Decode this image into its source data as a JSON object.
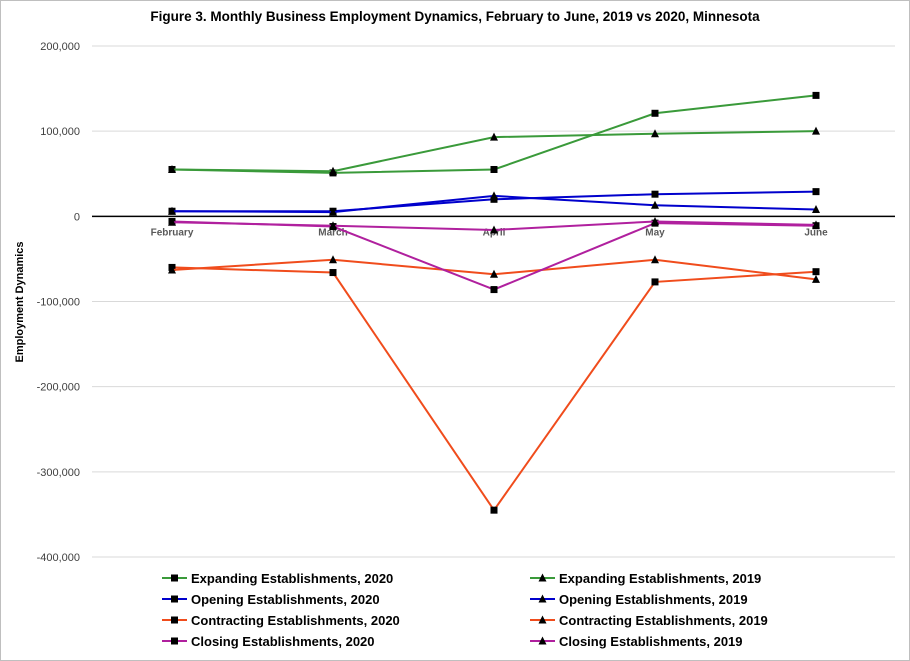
{
  "chart_data": {
    "type": "line",
    "title": "Figure 3. Monthly Business Employment Dynamics, February to June, 2019 vs 2020, Minnesota",
    "xlabel": "",
    "ylabel": "Employment Dynamics",
    "categories": [
      "February",
      "March",
      "April",
      "May",
      "June"
    ],
    "ylim": [
      -400000,
      200000
    ],
    "yticks": [
      200000,
      100000,
      0,
      -100000,
      -200000,
      -300000,
      -400000
    ],
    "ytick_labels": [
      "200,000",
      "100,000",
      "0",
      "-100,000",
      "-200,000",
      "-300,000",
      "-400,000"
    ],
    "grid": true,
    "legend_position": "bottom",
    "series": [
      {
        "name": "Expanding Establishments, 2020",
        "color": "#3a9a3a",
        "marker": "square",
        "values": [
          55000,
          51000,
          55000,
          121000,
          142000
        ]
      },
      {
        "name": "Expanding Establishments, 2019",
        "color": "#3a9a3a",
        "marker": "triangle",
        "values": [
          55000,
          53000,
          93000,
          97000,
          100000
        ]
      },
      {
        "name": "Opening Establishments, 2020",
        "color": "#0000cc",
        "marker": "square",
        "values": [
          6000,
          6000,
          20000,
          26000,
          29000
        ]
      },
      {
        "name": "Opening Establishments, 2019",
        "color": "#0000cc",
        "marker": "triangle",
        "values": [
          6000,
          5000,
          24000,
          13000,
          8000
        ]
      },
      {
        "name": "Contracting Establishments, 2020",
        "color": "#f04c1c",
        "marker": "square",
        "values": [
          -60000,
          -66000,
          -345000,
          -77000,
          -65000
        ]
      },
      {
        "name": "Contracting Establishments, 2019",
        "color": "#f04c1c",
        "marker": "triangle",
        "values": [
          -63000,
          -51000,
          -68000,
          -51000,
          -74000
        ]
      },
      {
        "name": "Closing Establishments, 2020",
        "color": "#b0209e",
        "marker": "square",
        "values": [
          -6000,
          -12000,
          -86000,
          -8000,
          -11000
        ]
      },
      {
        "name": "Closing Establishments, 2019",
        "color": "#b0209e",
        "marker": "triangle",
        "values": [
          -7000,
          -11000,
          -16000,
          -6000,
          -10000
        ]
      }
    ]
  }
}
